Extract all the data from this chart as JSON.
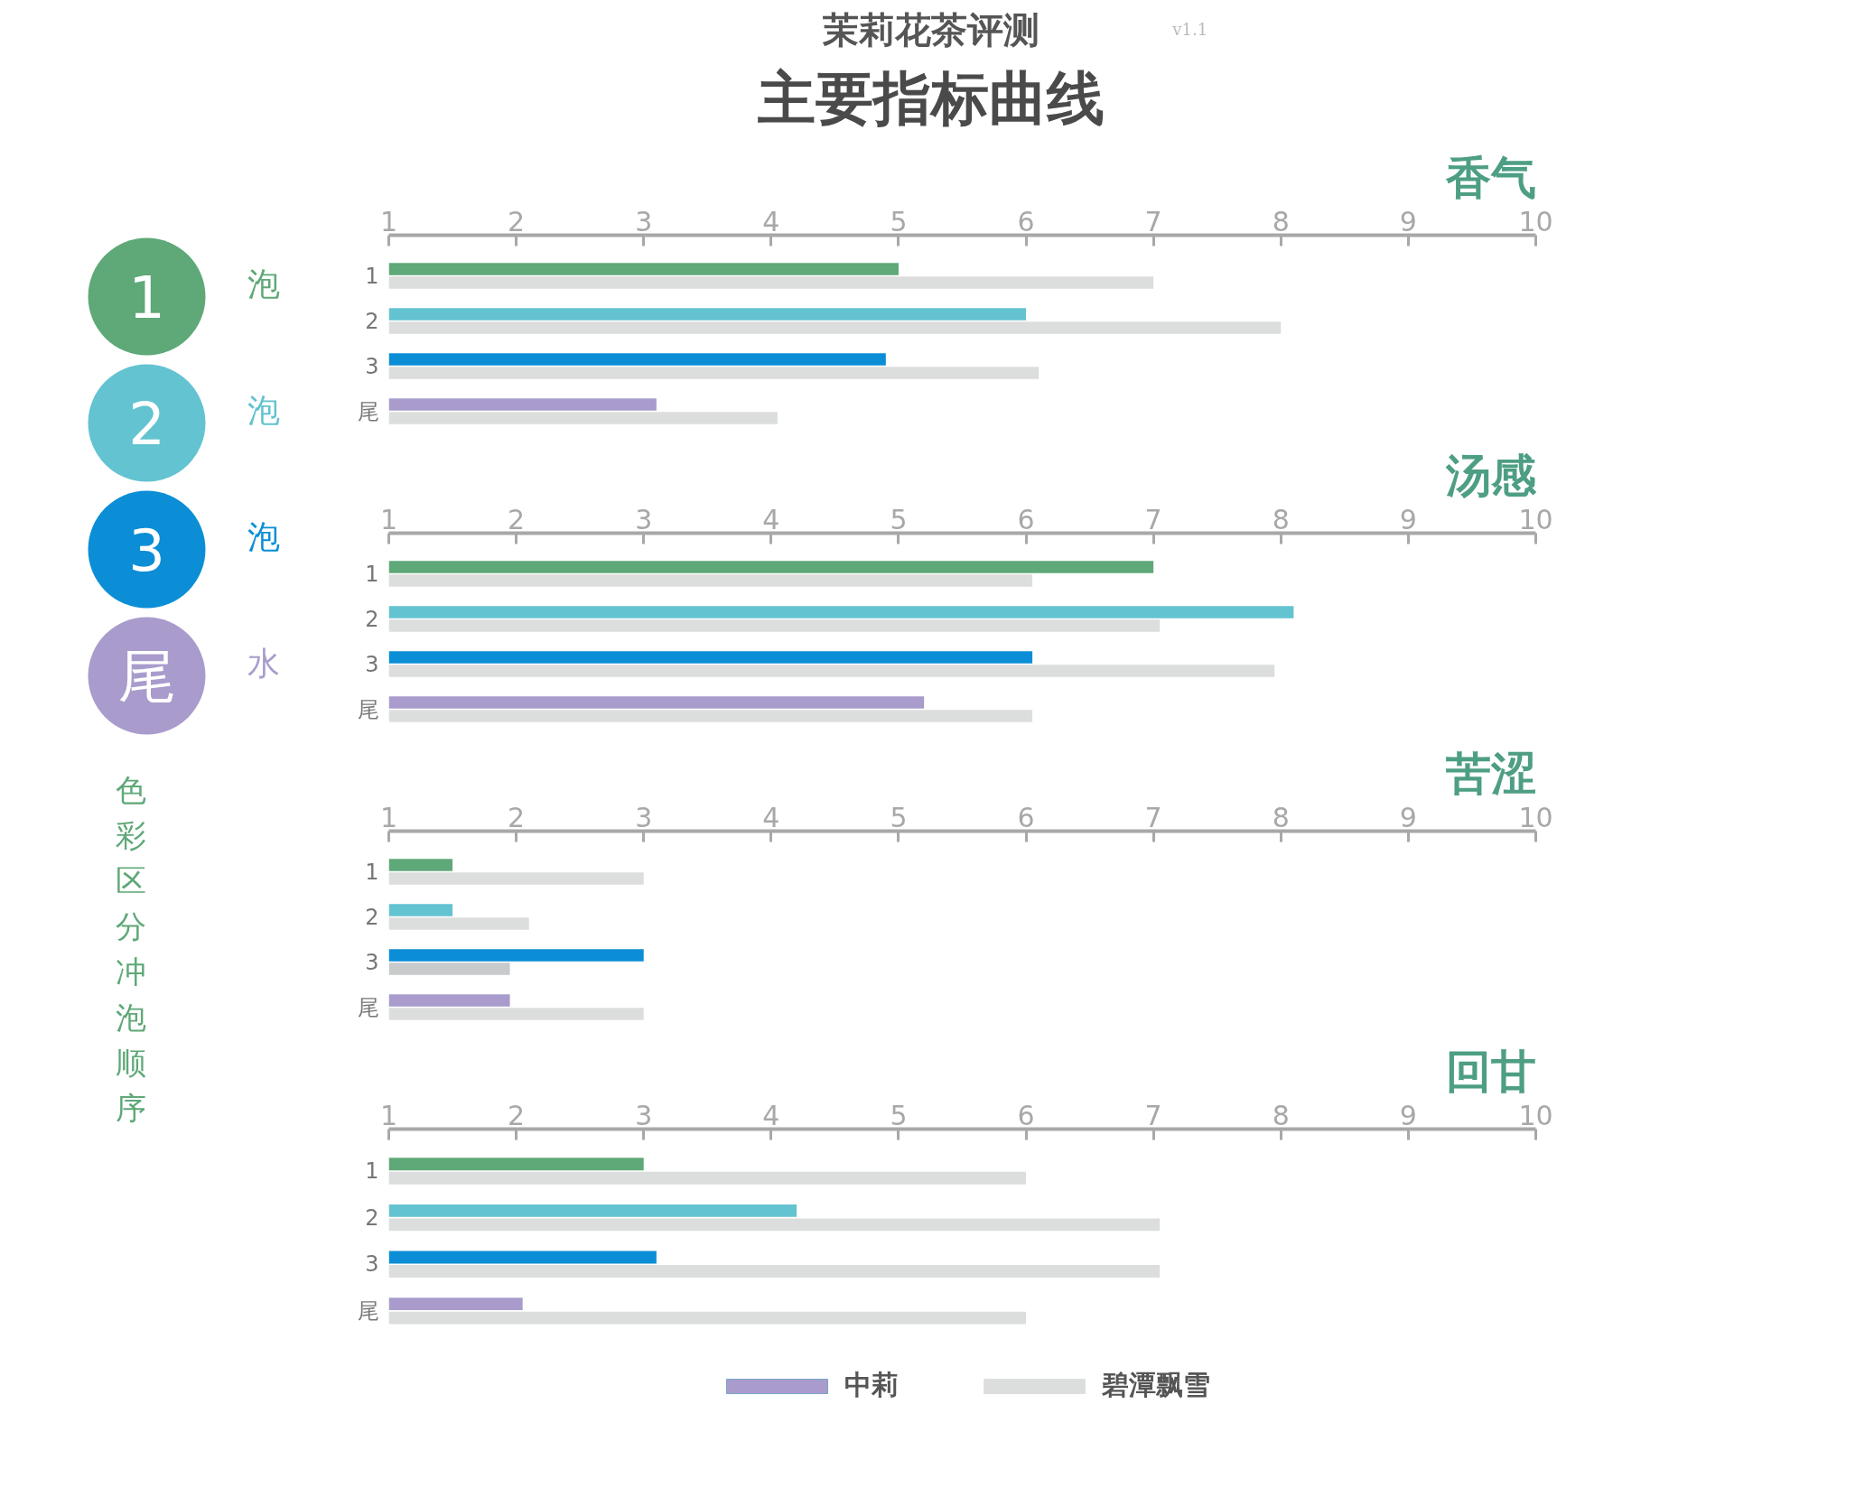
{
  "chart_data": [
    {
      "type": "other",
      "title": "主要指标曲线",
      "subtitle": "茉莉花茶评测",
      "annotations": [
        "v1.1",
        "1泡",
        "2泡",
        "3泡",
        "尾水",
        "色彩区分冲泡顺序"
      ]
    },
    {
      "type": "bar",
      "orientation": "horizontal",
      "title": "香气",
      "categories": [
        "1",
        "2",
        "3",
        "尾"
      ],
      "xlim": [
        1,
        10
      ],
      "xticks": [
        1,
        2,
        3,
        4,
        5,
        6,
        7,
        8,
        9,
        10
      ],
      "grid": false,
      "series": [
        {
          "colors": [
            "#5fa878",
            "#63c3d0",
            "#0b8ed6",
            "#a99ccc"
          ],
          "values": [
            5,
            6,
            4.9,
            3.1
          ]
        },
        {
          "color": "#dcdedd",
          "values": [
            7,
            8,
            6.1,
            4.05
          ]
        }
      ]
    },
    {
      "type": "bar",
      "orientation": "horizontal",
      "title": "汤感",
      "categories": [
        "1",
        "2",
        "3",
        "尾"
      ],
      "xlim": [
        1,
        10
      ],
      "xticks": [
        1,
        2,
        3,
        4,
        5,
        6,
        7,
        8,
        9,
        10
      ],
      "grid": false,
      "series": [
        {
          "colors": [
            "#5fa878",
            "#63c3d0",
            "#0b8ed6",
            "#a99ccc"
          ],
          "values": [
            7,
            8.1,
            6.05,
            5.2
          ]
        },
        {
          "color": "#dcdedd",
          "values": [
            6.05,
            7.05,
            7.95,
            6.05
          ]
        }
      ]
    },
    {
      "type": "bar",
      "orientation": "horizontal",
      "title": "苦涩",
      "categories": [
        "1",
        "2",
        "3",
        "尾"
      ],
      "xlim": [
        1,
        10
      ],
      "xticks": [
        1,
        2,
        3,
        4,
        5,
        6,
        7,
        8,
        9,
        10
      ],
      "grid": false,
      "series": [
        {
          "colors": [
            "#5fa878",
            "#63c3d0",
            "#0b8ed6",
            "#a99ccc"
          ],
          "values": [
            1.5,
            1.5,
            3,
            1.95
          ]
        },
        {
          "colors": [
            "#dcdedd",
            "#dcdedd",
            "#c8cacb",
            "#dcdedd"
          ],
          "values": [
            3,
            2.1,
            1.95,
            3
          ]
        }
      ]
    },
    {
      "type": "bar",
      "orientation": "horizontal",
      "title": "回甘",
      "categories": [
        "1",
        "2",
        "3",
        "尾"
      ],
      "xlim": [
        1,
        10
      ],
      "xticks": [
        1,
        2,
        3,
        4,
        5,
        6,
        7,
        8,
        9,
        10
      ],
      "grid": false,
      "legend": "bottom",
      "series": [
        {
          "name": "中莉",
          "colors": [
            "#5fa878",
            "#63c3d0",
            "#0b8ed6",
            "#a99ccc"
          ],
          "values": [
            3,
            4.2,
            3.1,
            2.05
          ]
        },
        {
          "name": "碧潭飘雪",
          "color": "#dcdedd",
          "values": [
            6,
            7.05,
            7.05,
            6
          ]
        }
      ]
    }
  ]
}
